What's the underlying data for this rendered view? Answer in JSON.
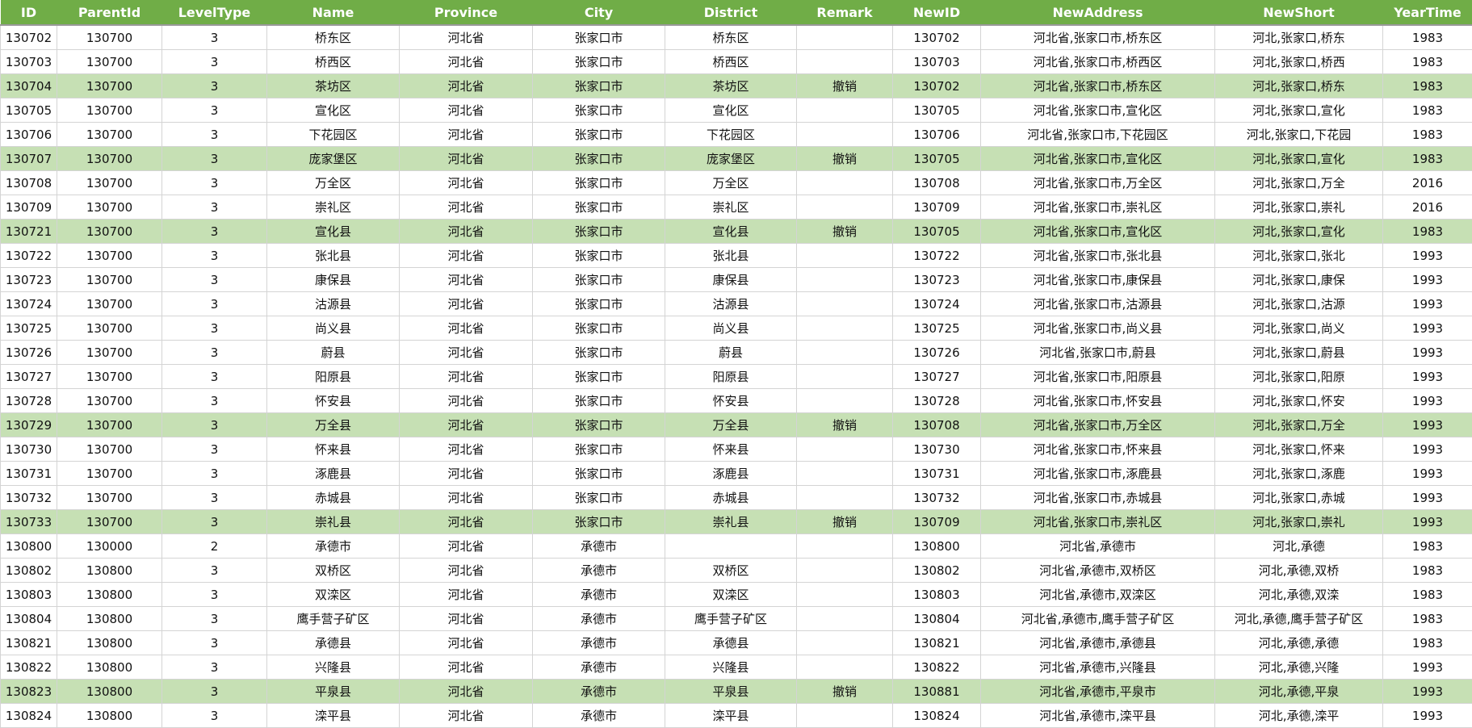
{
  "colors": {
    "header_bg": "#70ad47",
    "highlight_bg": "#c6e0b4"
  },
  "columns": [
    "ID",
    "ParentId",
    "LevelType",
    "Name",
    "Province",
    "City",
    "District",
    "Remark",
    "NewID",
    "NewAddress",
    "NewShort",
    "YearTime"
  ],
  "rows": [
    {
      "hl": false,
      "cells": [
        "130702",
        "130700",
        "3",
        "桥东区",
        "河北省",
        "张家口市",
        "桥东区",
        "",
        "130702",
        "河北省,张家口市,桥东区",
        "河北,张家口,桥东",
        "1983"
      ]
    },
    {
      "hl": false,
      "cells": [
        "130703",
        "130700",
        "3",
        "桥西区",
        "河北省",
        "张家口市",
        "桥西区",
        "",
        "130703",
        "河北省,张家口市,桥西区",
        "河北,张家口,桥西",
        "1983"
      ]
    },
    {
      "hl": true,
      "cells": [
        "130704",
        "130700",
        "3",
        "茶坊区",
        "河北省",
        "张家口市",
        "茶坊区",
        "撤销",
        "130702",
        "河北省,张家口市,桥东区",
        "河北,张家口,桥东",
        "1983"
      ]
    },
    {
      "hl": false,
      "cells": [
        "130705",
        "130700",
        "3",
        "宣化区",
        "河北省",
        "张家口市",
        "宣化区",
        "",
        "130705",
        "河北省,张家口市,宣化区",
        "河北,张家口,宣化",
        "1983"
      ]
    },
    {
      "hl": false,
      "cells": [
        "130706",
        "130700",
        "3",
        "下花园区",
        "河北省",
        "张家口市",
        "下花园区",
        "",
        "130706",
        "河北省,张家口市,下花园区",
        "河北,张家口,下花园",
        "1983"
      ]
    },
    {
      "hl": true,
      "cells": [
        "130707",
        "130700",
        "3",
        "庞家堡区",
        "河北省",
        "张家口市",
        "庞家堡区",
        "撤销",
        "130705",
        "河北省,张家口市,宣化区",
        "河北,张家口,宣化",
        "1983"
      ]
    },
    {
      "hl": false,
      "cells": [
        "130708",
        "130700",
        "3",
        "万全区",
        "河北省",
        "张家口市",
        "万全区",
        "",
        "130708",
        "河北省,张家口市,万全区",
        "河北,张家口,万全",
        "2016"
      ]
    },
    {
      "hl": false,
      "cells": [
        "130709",
        "130700",
        "3",
        "崇礼区",
        "河北省",
        "张家口市",
        "崇礼区",
        "",
        "130709",
        "河北省,张家口市,崇礼区",
        "河北,张家口,崇礼",
        "2016"
      ]
    },
    {
      "hl": true,
      "cells": [
        "130721",
        "130700",
        "3",
        "宣化县",
        "河北省",
        "张家口市",
        "宣化县",
        "撤销",
        "130705",
        "河北省,张家口市,宣化区",
        "河北,张家口,宣化",
        "1983"
      ]
    },
    {
      "hl": false,
      "cells": [
        "130722",
        "130700",
        "3",
        "张北县",
        "河北省",
        "张家口市",
        "张北县",
        "",
        "130722",
        "河北省,张家口市,张北县",
        "河北,张家口,张北",
        "1993"
      ]
    },
    {
      "hl": false,
      "cells": [
        "130723",
        "130700",
        "3",
        "康保县",
        "河北省",
        "张家口市",
        "康保县",
        "",
        "130723",
        "河北省,张家口市,康保县",
        "河北,张家口,康保",
        "1993"
      ]
    },
    {
      "hl": false,
      "cells": [
        "130724",
        "130700",
        "3",
        "沽源县",
        "河北省",
        "张家口市",
        "沽源县",
        "",
        "130724",
        "河北省,张家口市,沽源县",
        "河北,张家口,沽源",
        "1993"
      ]
    },
    {
      "hl": false,
      "cells": [
        "130725",
        "130700",
        "3",
        "尚义县",
        "河北省",
        "张家口市",
        "尚义县",
        "",
        "130725",
        "河北省,张家口市,尚义县",
        "河北,张家口,尚义",
        "1993"
      ]
    },
    {
      "hl": false,
      "cells": [
        "130726",
        "130700",
        "3",
        "蔚县",
        "河北省",
        "张家口市",
        "蔚县",
        "",
        "130726",
        "河北省,张家口市,蔚县",
        "河北,张家口,蔚县",
        "1993"
      ]
    },
    {
      "hl": false,
      "cells": [
        "130727",
        "130700",
        "3",
        "阳原县",
        "河北省",
        "张家口市",
        "阳原县",
        "",
        "130727",
        "河北省,张家口市,阳原县",
        "河北,张家口,阳原",
        "1993"
      ]
    },
    {
      "hl": false,
      "cells": [
        "130728",
        "130700",
        "3",
        "怀安县",
        "河北省",
        "张家口市",
        "怀安县",
        "",
        "130728",
        "河北省,张家口市,怀安县",
        "河北,张家口,怀安",
        "1993"
      ]
    },
    {
      "hl": true,
      "cells": [
        "130729",
        "130700",
        "3",
        "万全县",
        "河北省",
        "张家口市",
        "万全县",
        "撤销",
        "130708",
        "河北省,张家口市,万全区",
        "河北,张家口,万全",
        "1993"
      ]
    },
    {
      "hl": false,
      "cells": [
        "130730",
        "130700",
        "3",
        "怀来县",
        "河北省",
        "张家口市",
        "怀来县",
        "",
        "130730",
        "河北省,张家口市,怀来县",
        "河北,张家口,怀来",
        "1993"
      ]
    },
    {
      "hl": false,
      "cells": [
        "130731",
        "130700",
        "3",
        "涿鹿县",
        "河北省",
        "张家口市",
        "涿鹿县",
        "",
        "130731",
        "河北省,张家口市,涿鹿县",
        "河北,张家口,涿鹿",
        "1993"
      ]
    },
    {
      "hl": false,
      "cells": [
        "130732",
        "130700",
        "3",
        "赤城县",
        "河北省",
        "张家口市",
        "赤城县",
        "",
        "130732",
        "河北省,张家口市,赤城县",
        "河北,张家口,赤城",
        "1993"
      ]
    },
    {
      "hl": true,
      "cells": [
        "130733",
        "130700",
        "3",
        "崇礼县",
        "河北省",
        "张家口市",
        "崇礼县",
        "撤销",
        "130709",
        "河北省,张家口市,崇礼区",
        "河北,张家口,崇礼",
        "1993"
      ]
    },
    {
      "hl": false,
      "cells": [
        "130800",
        "130000",
        "2",
        "承德市",
        "河北省",
        "承德市",
        "",
        "",
        "130800",
        "河北省,承德市",
        "河北,承德",
        "1983"
      ]
    },
    {
      "hl": false,
      "cells": [
        "130802",
        "130800",
        "3",
        "双桥区",
        "河北省",
        "承德市",
        "双桥区",
        "",
        "130802",
        "河北省,承德市,双桥区",
        "河北,承德,双桥",
        "1983"
      ]
    },
    {
      "hl": false,
      "cells": [
        "130803",
        "130800",
        "3",
        "双滦区",
        "河北省",
        "承德市",
        "双滦区",
        "",
        "130803",
        "河北省,承德市,双滦区",
        "河北,承德,双滦",
        "1983"
      ]
    },
    {
      "hl": false,
      "cells": [
        "130804",
        "130800",
        "3",
        "鹰手营子矿区",
        "河北省",
        "承德市",
        "鹰手营子矿区",
        "",
        "130804",
        "河北省,承德市,鹰手营子矿区",
        "河北,承德,鹰手营子矿区",
        "1983"
      ]
    },
    {
      "hl": false,
      "cells": [
        "130821",
        "130800",
        "3",
        "承德县",
        "河北省",
        "承德市",
        "承德县",
        "",
        "130821",
        "河北省,承德市,承德县",
        "河北,承德,承德",
        "1983"
      ]
    },
    {
      "hl": false,
      "cells": [
        "130822",
        "130800",
        "3",
        "兴隆县",
        "河北省",
        "承德市",
        "兴隆县",
        "",
        "130822",
        "河北省,承德市,兴隆县",
        "河北,承德,兴隆",
        "1993"
      ]
    },
    {
      "hl": true,
      "cells": [
        "130823",
        "130800",
        "3",
        "平泉县",
        "河北省",
        "承德市",
        "平泉县",
        "撤销",
        "130881",
        "河北省,承德市,平泉市",
        "河北,承德,平泉",
        "1993"
      ]
    },
    {
      "hl": false,
      "cells": [
        "130824",
        "130800",
        "3",
        "滦平县",
        "河北省",
        "承德市",
        "滦平县",
        "",
        "130824",
        "河北省,承德市,滦平县",
        "河北,承德,滦平",
        "1993"
      ]
    }
  ]
}
